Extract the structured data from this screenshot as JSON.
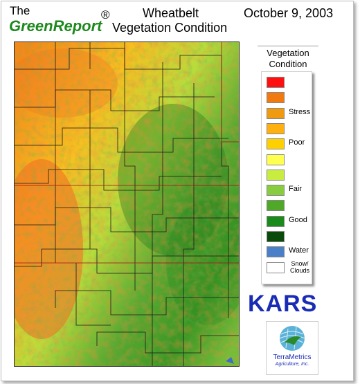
{
  "header": {
    "the": "The",
    "brand": "GreenReport",
    "registered": "®",
    "title_line1": "Wheatbelt",
    "title_line2": "Vegetation Condition",
    "date": "October 9, 2003"
  },
  "legend": {
    "title_line1": "Vegetation",
    "title_line2": "Condition",
    "entries": [
      {
        "color": "#ff1010",
        "label": ""
      },
      {
        "color": "#f07a10",
        "label": ""
      },
      {
        "color": "#f09a10",
        "label": "Stress"
      },
      {
        "color": "#fdb010",
        "label": ""
      },
      {
        "color": "#ffd000",
        "label": "Poor"
      },
      {
        "color": "#ffff50",
        "label": ""
      },
      {
        "color": "#c8ec40",
        "label": ""
      },
      {
        "color": "#88cc40",
        "label": "Fair"
      },
      {
        "color": "#50a828",
        "label": ""
      },
      {
        "color": "#1a8a1a",
        "label": "Good"
      },
      {
        "color": "#0a4a0a",
        "label": ""
      },
      {
        "color": "#4a80c8",
        "label": "Water"
      },
      {
        "color": "#ffffff",
        "label": "Snow/ Clouds"
      }
    ]
  },
  "branding": {
    "kars": "KARS",
    "company_line1": "TerraMetrics",
    "company_line2": "Agriculture, Inc."
  }
}
